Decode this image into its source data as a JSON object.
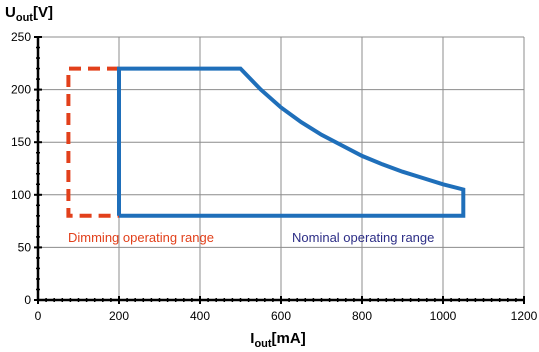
{
  "chart_data": {
    "type": "line",
    "title": "",
    "xlabel": {
      "main": "I",
      "sub": "out",
      "unit": "[mA]"
    },
    "ylabel": {
      "main": "U",
      "sub": "out",
      "unit": "[V]"
    },
    "xlim": [
      0,
      1200
    ],
    "ylim": [
      0,
      250
    ],
    "xticks": [
      0,
      200,
      400,
      600,
      800,
      1000,
      1200
    ],
    "yticks": [
      0,
      50,
      100,
      150,
      200,
      250
    ],
    "grid": true,
    "legend": "none",
    "series": [
      {
        "name": "Dimming operating range",
        "color": "#e2401b",
        "style": "dashed",
        "x": [
          200,
          75,
          75,
          200
        ],
        "y": [
          220,
          220,
          80,
          80
        ]
      },
      {
        "name": "Nominal operating range",
        "color": "#1f6fba",
        "style": "solid",
        "x": [
          200,
          200,
          500,
          550,
          600,
          650,
          700,
          750,
          800,
          850,
          900,
          950,
          1000,
          1050,
          1050,
          200
        ],
        "y": [
          80,
          220,
          220,
          200,
          183,
          169,
          157,
          147,
          137,
          129,
          122,
          116,
          110,
          105,
          80,
          80
        ]
      }
    ],
    "annotations": [
      {
        "text": "Dimming operating range",
        "color": "#e2401b"
      },
      {
        "text": "Nominal operating range",
        "color": "#2d2e86"
      }
    ]
  }
}
